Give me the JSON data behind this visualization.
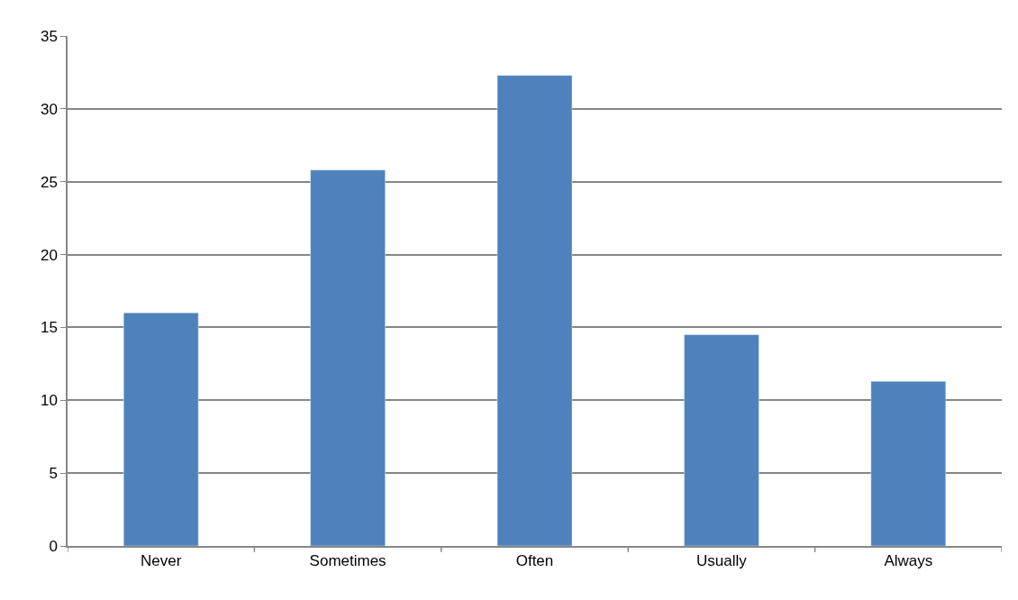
{
  "chart_data": {
    "type": "bar",
    "categories": [
      "Never",
      "Sometimes",
      "Often",
      "Usually",
      "Always"
    ],
    "values": [
      16.0,
      25.8,
      32.3,
      14.5,
      11.3
    ],
    "color": "#4f81bd",
    "ylim": [
      0,
      35
    ],
    "yticks": [
      0,
      5,
      10,
      15,
      20,
      25,
      30,
      35
    ],
    "grid": "y"
  }
}
